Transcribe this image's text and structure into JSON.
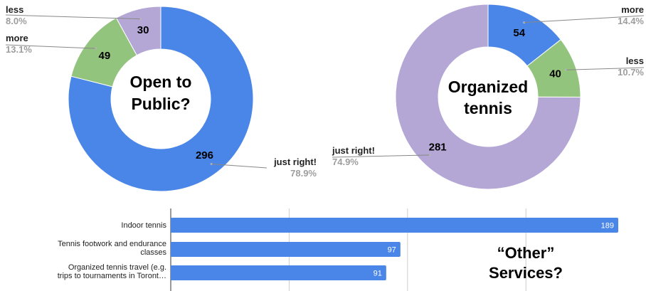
{
  "chart_data": [
    {
      "type": "pie",
      "title": "Open to Public?",
      "title_lines": [
        "Open to",
        "Public?"
      ],
      "categories": [
        "just right!",
        "more",
        "less"
      ],
      "values": [
        296,
        49,
        30
      ],
      "percent_labels": [
        "78.9%",
        "13.1%",
        "8.0%"
      ],
      "colors": [
        "#4a86e8",
        "#93c47d",
        "#b4a7d6"
      ],
      "donut": true
    },
    {
      "type": "pie",
      "title": "Organized tennis",
      "title_lines": [
        "Organized",
        "tennis"
      ],
      "categories": [
        "more",
        "less",
        "just right!"
      ],
      "values": [
        54,
        40,
        281
      ],
      "percent_labels": [
        "14.4%",
        "10.7%",
        "74.9%"
      ],
      "colors": [
        "#4a86e8",
        "#93c47d",
        "#b4a7d6"
      ],
      "donut": true
    },
    {
      "type": "bar",
      "orientation": "horizontal",
      "title": "“Other” Services?",
      "title_lines": [
        "“Other”",
        "Services?"
      ],
      "categories": [
        [
          "Indoor tennis"
        ],
        [
          "Tennis footwork and endurance",
          "classes"
        ],
        [
          "Organized tennis travel (e.g.",
          "trips to tournaments in Toront…"
        ]
      ],
      "values": [
        189,
        97,
        91
      ],
      "color": "#4a86e8",
      "grid": true
    }
  ]
}
